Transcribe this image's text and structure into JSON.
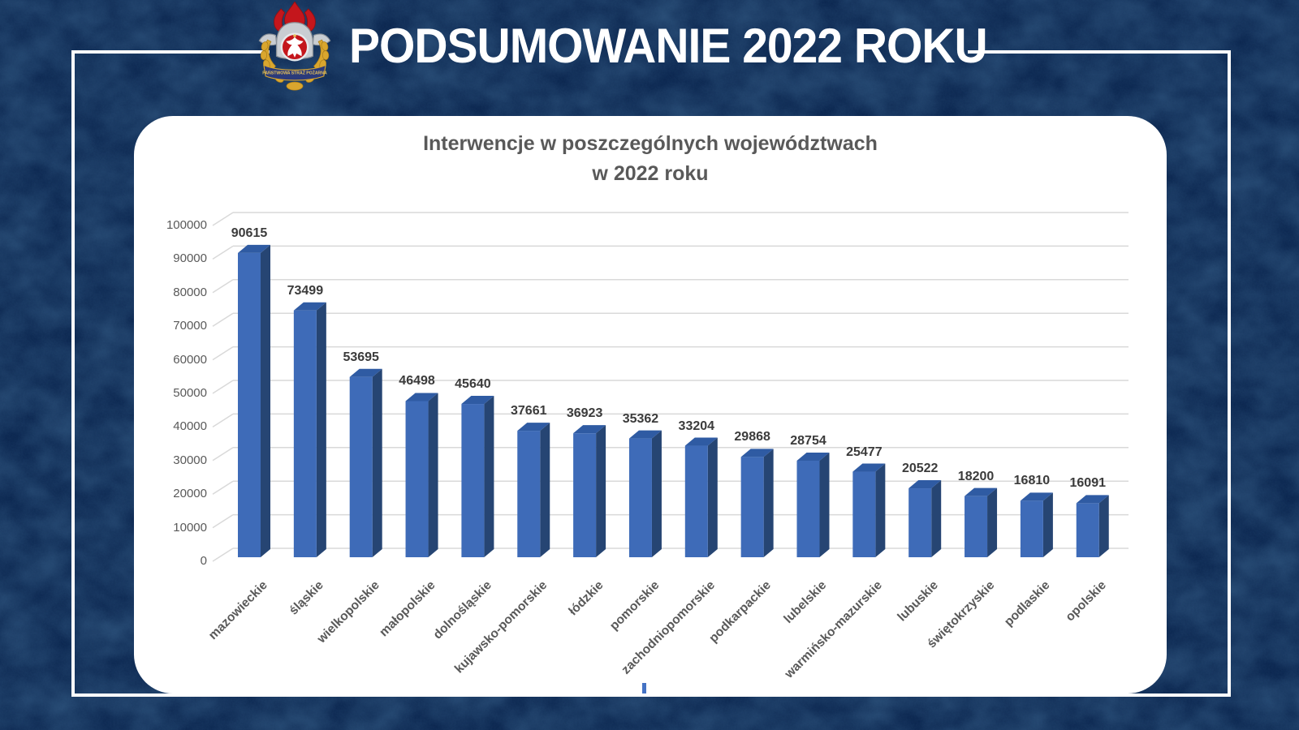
{
  "header": {
    "title": "PODSUMOWANIE 2022 ROKU",
    "logo": {
      "name": "panstwowa-straz-pozarna-emblem",
      "ribbon_text": "PAŃSTWOWA STRAŻ POŻARNA"
    }
  },
  "chart_data": {
    "type": "bar",
    "style": "3d-column",
    "title": "Interwencje w poszczególnych województwach w 2022 roku",
    "title_lines": [
      "Interwencje w poszczególnych województwach",
      "w 2022 roku"
    ],
    "xlabel": "",
    "ylabel": "",
    "ylim": [
      0,
      100000
    ],
    "ytick_step": 10000,
    "grid": true,
    "legend_position": "none",
    "categories": [
      "mazowieckie",
      "śląskie",
      "wielkopolskie",
      "małopolskie",
      "dolnośląskie",
      "kujawsko-pomorskie",
      "łódzkie",
      "pomorskie",
      "zachodniopomorskie",
      "podkarpackie",
      "lubelskie",
      "warmińsko-mazurskie",
      "lubuskie",
      "świętokrzyskie",
      "podlaskie",
      "opolskie"
    ],
    "values": [
      90615,
      73499,
      53695,
      46498,
      45640,
      37661,
      36923,
      35362,
      33204,
      29868,
      28754,
      25477,
      20522,
      18200,
      16810,
      16091
    ]
  },
  "colors": {
    "background": "#0E2B55",
    "frame": "#FFFFFF",
    "card": "#FFFFFF",
    "bar_front": "#3E6BB8",
    "bar_side": "#264573",
    "bar_top": "#2F5BA3",
    "gridline": "#D9D9D9",
    "axis_text": "#595959",
    "data_label_text": "#3B3B3B",
    "header_text": "#FFFFFF",
    "flame_red": "#C4161C",
    "gold": "#D9A62E",
    "ribbon_blue": "#2B3A7A"
  }
}
